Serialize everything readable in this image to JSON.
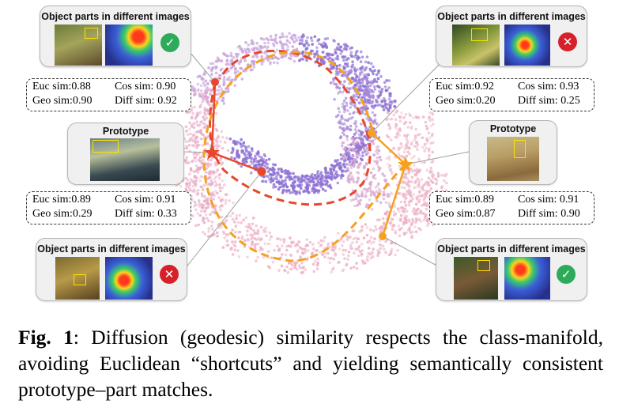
{
  "cards": {
    "top_left_title": "Object parts in different images",
    "top_right_title": "Object parts in different images",
    "bottom_left_title": "Object parts in different images",
    "bottom_right_title": "Object parts in different images",
    "prototype_left_title": "Prototype",
    "prototype_right_title": "Prototype"
  },
  "icons": {
    "top_left": "check-icon",
    "top_right": "cross-icon",
    "bottom_left": "cross-icon",
    "bottom_right": "check-icon",
    "check_glyph": "✓",
    "cross_glyph": "✕",
    "check_color": "#2eab5a",
    "cross_color": "#d6212b"
  },
  "stats": {
    "left_top": {
      "euc": "Euc sim:0.88",
      "cos": "Cos sim: 0.90",
      "geo": "Geo sim:0.90",
      "diff": "Diff sim: 0.92"
    },
    "left_bottom": {
      "euc": "Euc sim:0.89",
      "cos": "Cos sim: 0.91",
      "geo": "Geo sim:0.29",
      "diff": "Diff sim: 0.33"
    },
    "right_top": {
      "euc": "Euc sim:0.92",
      "cos": "Cos sim: 0.93",
      "geo": "Geo sim:0.20",
      "diff": "Diff sim: 0.25"
    },
    "right_bottom": {
      "euc": "Euc sim:0.89",
      "cos": "Cos sim: 0.91",
      "geo": "Geo sim:0.87",
      "diff": "Diff sim: 0.90"
    }
  },
  "colors": {
    "red_path": "#e8472c",
    "orange_path": "#f5a11f",
    "dots_purple": "#8e72d4",
    "dots_pink": "#eeb0c4"
  },
  "caption": {
    "label": "Fig. 1",
    "text": ":  Diffusion (geodesic) similarity respects the class-manifold, avoiding Euclidean “shortcuts” and yielding semantically consistent prototype–part matches."
  }
}
